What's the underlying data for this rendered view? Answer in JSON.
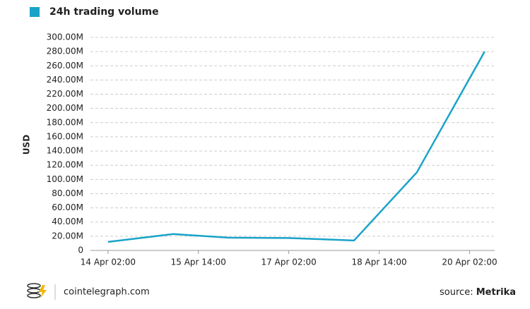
{
  "chart_data": {
    "type": "line",
    "y_label": "USD",
    "x": [
      "14 Apr 02:00",
      "15 Apr 04:00",
      "16 Apr 02:00",
      "17 Apr 02:00",
      "18 Apr 04:00",
      "19 Apr 05:00",
      "20 Apr 08:00"
    ],
    "series": [
      {
        "name": "24h trading volume",
        "color": "#1aa3c8",
        "values": [
          12000000,
          23000000,
          18000000,
          17500000,
          14000000,
          110000000,
          280000000
        ]
      }
    ],
    "xlim": [
      "13 Apr 19:00",
      "20 Apr 12:00"
    ],
    "xticks": [
      "14 Apr 02:00",
      "15 Apr 14:00",
      "17 Apr 02:00",
      "18 Apr 14:00",
      "20 Apr 02:00"
    ],
    "ylim": [
      0,
      300000000
    ],
    "yticks": [
      0,
      {
        "value": 20000000,
        "label": "20.00M"
      },
      {
        "value": 40000000,
        "label": "40.00M"
      },
      {
        "value": 60000000,
        "label": "60.00M"
      },
      {
        "value": 80000000,
        "label": "80.00M"
      },
      {
        "value": 100000000,
        "label": "100.00M"
      },
      {
        "value": 120000000,
        "label": "120.00M"
      },
      {
        "value": 140000000,
        "label": "140.00M"
      },
      {
        "value": 160000000,
        "label": "160.00M"
      },
      {
        "value": 180000000,
        "label": "180.00M"
      },
      {
        "value": 200000000,
        "label": "200.00M"
      },
      {
        "value": 220000000,
        "label": "220.00M"
      },
      {
        "value": 240000000,
        "label": "240.00M"
      },
      {
        "value": 260000000,
        "label": "260.00M"
      },
      {
        "value": 280000000,
        "label": "280.00M"
      },
      {
        "value": 300000000,
        "label": "300.00M"
      }
    ],
    "grid": true
  },
  "footer": {
    "site": "cointelegraph.com",
    "source_label": "source:",
    "source": "Metrika"
  }
}
